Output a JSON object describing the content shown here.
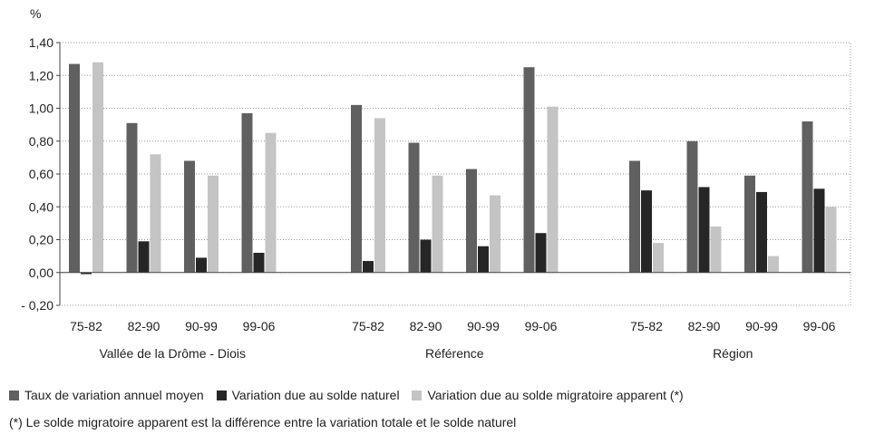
{
  "chart_data": {
    "type": "bar",
    "unit_label": "%",
    "ylim": [
      -0.2,
      1.4
    ],
    "yticks": [
      "- 0,20",
      "0,00",
      "0,20",
      "0,40",
      "0,60",
      "0,80",
      "1,00",
      "1,20",
      "1,40"
    ],
    "grid": true,
    "legend_position": "bottom",
    "groups": [
      {
        "name": "Vallée de la Drôme - Diois",
        "categories": [
          "75-82",
          "82-90",
          "90-99",
          "99-06"
        ],
        "series": [
          {
            "name": "Taux de variation annuel moyen",
            "values": [
              1.27,
              0.91,
              0.68,
              0.97
            ]
          },
          {
            "name": "Variation due au solde naturel",
            "values": [
              -0.01,
              0.19,
              0.09,
              0.12
            ]
          },
          {
            "name": "Variation due au solde migratoire apparent (*)",
            "values": [
              1.28,
              0.72,
              0.59,
              0.85
            ]
          }
        ]
      },
      {
        "name": "Référence",
        "categories": [
          "75-82",
          "82-90",
          "90-99",
          "99-06"
        ],
        "series": [
          {
            "name": "Taux de variation annuel moyen",
            "values": [
              1.02,
              0.79,
              0.63,
              1.25
            ]
          },
          {
            "name": "Variation due au solde naturel",
            "values": [
              0.07,
              0.2,
              0.16,
              0.24
            ]
          },
          {
            "name": "Variation due au solde migratoire apparent (*)",
            "values": [
              0.94,
              0.59,
              0.47,
              1.01
            ]
          }
        ]
      },
      {
        "name": "Région",
        "categories": [
          "75-82",
          "82-90",
          "90-99",
          "99-06"
        ],
        "series": [
          {
            "name": "Taux de variation annuel moyen",
            "values": [
              0.68,
              0.8,
              0.59,
              0.92
            ]
          },
          {
            "name": "Variation due au solde naturel",
            "values": [
              0.5,
              0.52,
              0.49,
              0.51
            ]
          },
          {
            "name": "Variation due au solde migratoire apparent (*)",
            "values": [
              0.18,
              0.28,
              0.1,
              0.4
            ]
          }
        ]
      }
    ],
    "colors": [
      "#606060",
      "#262626",
      "#c4c4c4"
    ]
  },
  "legend": {
    "items": [
      {
        "label": "Taux de variation annuel moyen",
        "color": "#606060"
      },
      {
        "label": "Variation due au solde naturel",
        "color": "#262626"
      },
      {
        "label": "Variation due au solde migratoire apparent (*)",
        "color": "#c4c4c4"
      }
    ]
  },
  "footnote": "(*) Le solde migratoire apparent est la différence entre la variation totale et le solde naturel"
}
